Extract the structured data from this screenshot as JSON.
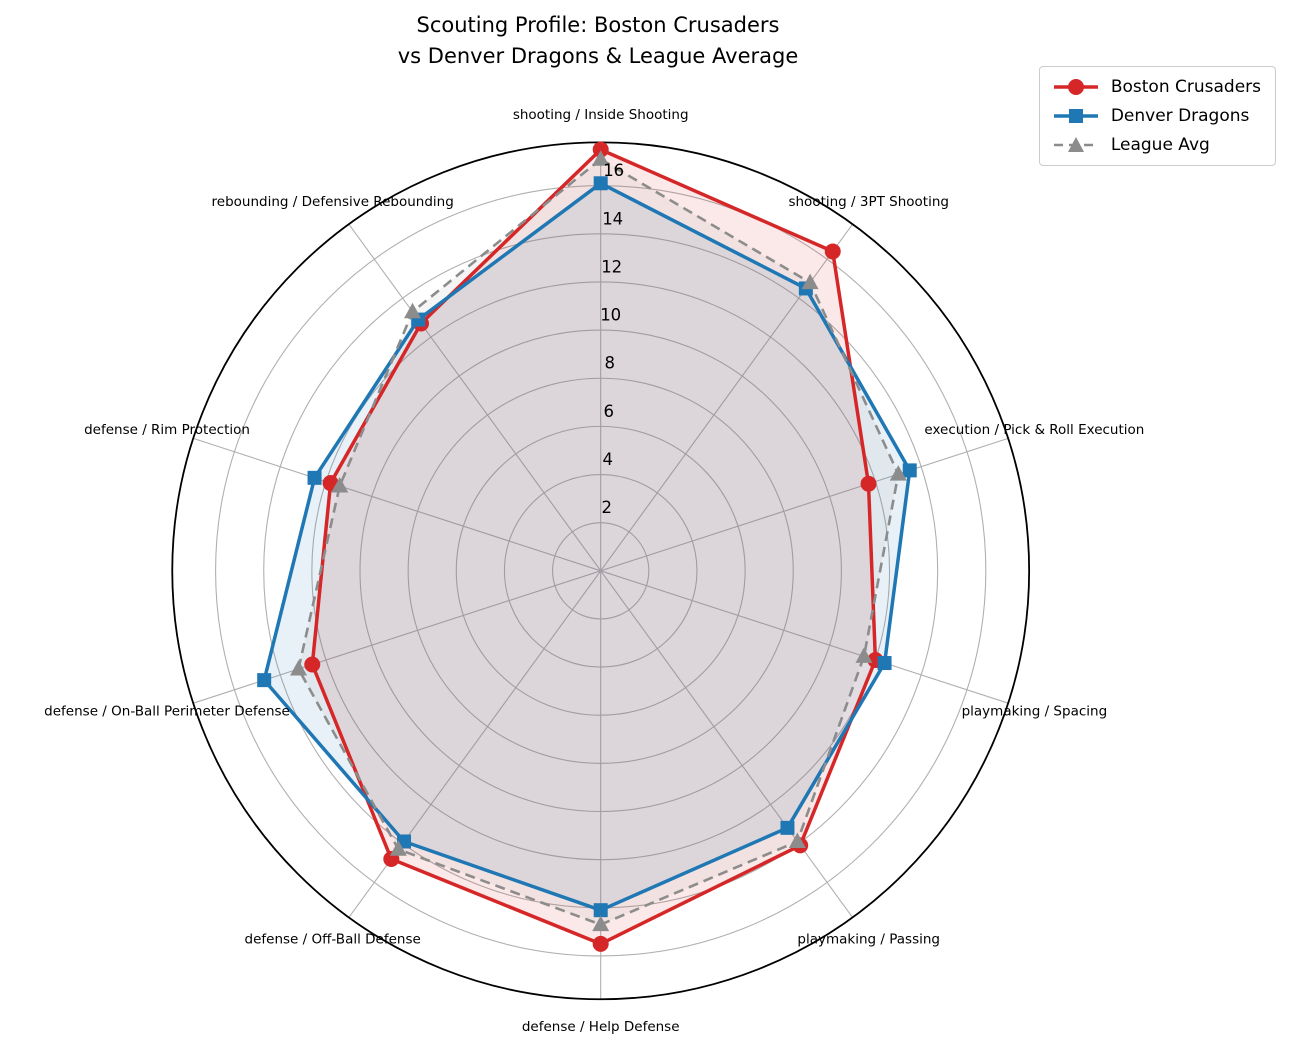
{
  "title": {
    "line1": "Scouting Profile: Boston Crusaders",
    "line2": "vs Denver Dragons & League Average"
  },
  "legend": {
    "items": [
      {
        "label": "Boston Crusaders",
        "color": "#d62728",
        "marker": "circle",
        "line": "solid"
      },
      {
        "label": "Denver Dragons",
        "color": "#1f77b4",
        "marker": "square",
        "line": "solid"
      },
      {
        "label": "League Avg",
        "color": "#8c8c8c",
        "marker": "triangle",
        "line": "dashed"
      }
    ]
  },
  "chart_data": {
    "type": "radar",
    "categories": [
      "shooting / Inside Shooting",
      "shooting / 3PT Shooting",
      "execution / Pick & Roll Execution",
      "playmaking / Spacing",
      "playmaking / Passing",
      "defense / Help Defense",
      "defense / Off-Ball Defense",
      "defense / On-Ball Perimeter Defense",
      "defense / Rim Protection",
      "rebounding / Defensive Rebounding"
    ],
    "series": [
      {
        "name": "Boston Crusaders",
        "color": "#d62728",
        "marker": "circle",
        "line": "solid",
        "fill_opacity": 0.1,
        "values": [
          17.5,
          16.4,
          11.7,
          12.0,
          14.1,
          15.5,
          14.8,
          12.6,
          11.8,
          12.7
        ]
      },
      {
        "name": "Denver Dragons",
        "color": "#1f77b4",
        "marker": "square",
        "line": "solid",
        "fill_opacity": 0.1,
        "values": [
          16.1,
          14.5,
          13.5,
          12.4,
          13.2,
          14.1,
          13.9,
          14.7,
          12.5,
          12.9
        ]
      },
      {
        "name": "League Avg",
        "color": "#8c8c8c",
        "marker": "triangle",
        "line": "dashed",
        "fill_opacity": 0.09,
        "values": [
          17.1,
          14.8,
          13.0,
          11.5,
          13.9,
          14.7,
          14.3,
          13.2,
          11.4,
          13.3
        ]
      }
    ],
    "r_ticks": [
      2,
      4,
      6,
      8,
      10,
      12,
      14,
      16
    ],
    "r_max": 17.8,
    "grid": true,
    "grid_color": "#b0b0b0",
    "outline_color": "#000000",
    "legend_position": "upper right",
    "start_angle_deg": 90,
    "direction": "clockwise"
  }
}
